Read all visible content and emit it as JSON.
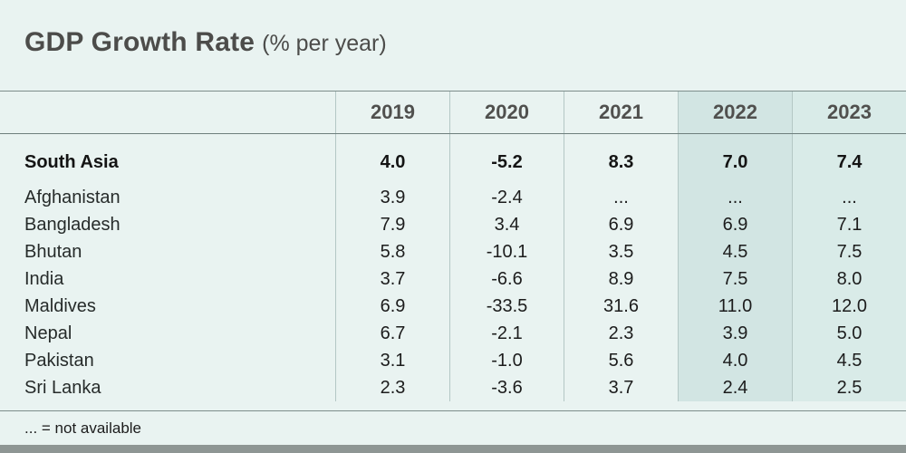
{
  "title": {
    "main": "GDP Growth Rate",
    "unit": "(% per year)"
  },
  "table": {
    "columns": [
      "2019",
      "2020",
      "2021",
      "2022",
      "2023"
    ],
    "rows": [
      {
        "name": "South Asia",
        "values": [
          "4.0",
          "-5.2",
          "8.3",
          "7.0",
          "7.4"
        ]
      },
      {
        "name": "Afghanistan",
        "values": [
          "3.9",
          "-2.4",
          "...",
          "...",
          "..."
        ]
      },
      {
        "name": "Bangladesh",
        "values": [
          "7.9",
          "3.4",
          "6.9",
          "6.9",
          "7.1"
        ]
      },
      {
        "name": "Bhutan",
        "values": [
          "5.8",
          "-10.1",
          "3.5",
          "4.5",
          "7.5"
        ]
      },
      {
        "name": "India",
        "values": [
          "3.7",
          "-6.6",
          "8.9",
          "7.5",
          "8.0"
        ]
      },
      {
        "name": "Maldives",
        "values": [
          "6.9",
          "-33.5",
          "31.6",
          "11.0",
          "12.0"
        ]
      },
      {
        "name": "Nepal",
        "values": [
          "6.7",
          "-2.1",
          "2.3",
          "3.9",
          "5.0"
        ]
      },
      {
        "name": "Pakistan",
        "values": [
          "3.1",
          "-1.0",
          "5.6",
          "4.0",
          "4.5"
        ]
      },
      {
        "name": "Sri Lanka",
        "values": [
          "2.3",
          "-3.6",
          "3.7",
          "2.4",
          "2.5"
        ]
      }
    ]
  },
  "footnote": "... = not available",
  "colors": {
    "background": "#e9f3f1",
    "highlight_2022": "#d2e5e3",
    "highlight_2023": "#d9ebe8",
    "rule": "#7d8d8b",
    "column_separator": "#b4c7c5",
    "title_text": "#4c4c4a",
    "body_text": "#1c1c1c",
    "bottom_bar": "#8e9694"
  },
  "chart_data": {
    "type": "table",
    "title": "GDP Growth Rate (% per year)",
    "columns": [
      "2019",
      "2020",
      "2021",
      "2022",
      "2023"
    ],
    "rows": [
      {
        "label": "South Asia",
        "bold": true,
        "values": [
          4.0,
          -5.2,
          8.3,
          7.0,
          7.4
        ]
      },
      {
        "label": "Afghanistan",
        "bold": false,
        "values": [
          3.9,
          -2.4,
          null,
          null,
          null
        ]
      },
      {
        "label": "Bangladesh",
        "bold": false,
        "values": [
          7.9,
          3.4,
          6.9,
          6.9,
          7.1
        ]
      },
      {
        "label": "Bhutan",
        "bold": false,
        "values": [
          5.8,
          -10.1,
          3.5,
          4.5,
          7.5
        ]
      },
      {
        "label": "India",
        "bold": false,
        "values": [
          3.7,
          -6.6,
          8.9,
          7.5,
          8.0
        ]
      },
      {
        "label": "Maldives",
        "bold": false,
        "values": [
          6.9,
          -33.5,
          31.6,
          11.0,
          12.0
        ]
      },
      {
        "label": "Nepal",
        "bold": false,
        "values": [
          6.7,
          -2.1,
          2.3,
          3.9,
          5.0
        ]
      },
      {
        "label": "Pakistan",
        "bold": false,
        "values": [
          3.1,
          -1.0,
          5.6,
          4.0,
          4.5
        ]
      },
      {
        "label": "Sri Lanka",
        "bold": false,
        "values": [
          2.3,
          -3.6,
          3.7,
          2.4,
          2.5
        ]
      }
    ],
    "null_marker": "...",
    "note": "... = not available",
    "highlighted_columns": [
      "2022",
      "2023"
    ]
  }
}
